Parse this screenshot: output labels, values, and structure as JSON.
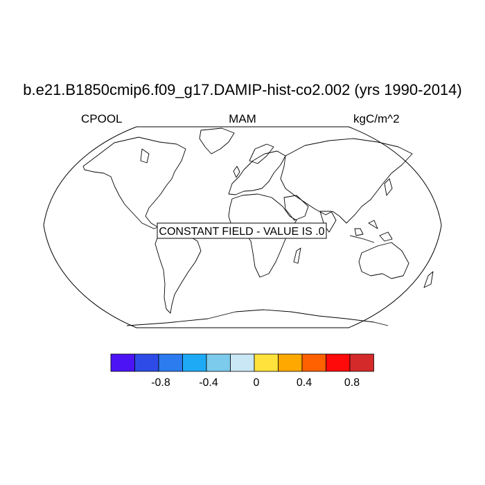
{
  "title": "b.e21.B1850cmip6.f09_g17.DAMIP-hist-co2.002 (yrs 1990-2014)",
  "subtitle_left": "CPOOL",
  "subtitle_center": "MAM",
  "subtitle_right": "kgC/m^2",
  "annotation": "CONSTANT FIELD - VALUE IS .0",
  "projection": "Robinson",
  "colorbar": {
    "colors": [
      "#4c14f5",
      "#2e4be8",
      "#2c7cf0",
      "#1eaaf5",
      "#7ccaec",
      "#c9e7f4",
      "#ffe23c",
      "#ffa800",
      "#ff6000",
      "#ff0a0a",
      "#d42a2a"
    ],
    "tick_labels": [
      "-0.8",
      "-0.4",
      "0",
      "0.4",
      "0.8"
    ]
  }
}
